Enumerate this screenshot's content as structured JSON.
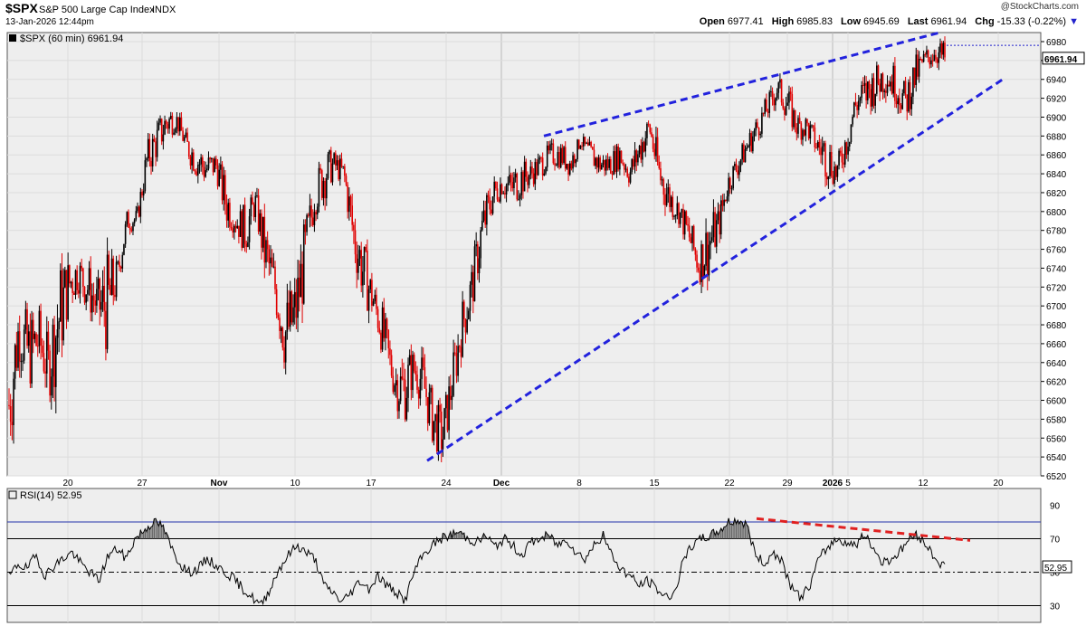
{
  "header": {
    "symbol": "$SPX",
    "name": "S&P 500 Large Cap Index",
    "exchange": "INDX",
    "datetime": "13-Jan-2026 12:44pm",
    "brand": "@StockCharts.com",
    "open_label": "Open",
    "open": "6977.41",
    "high_label": "High",
    "high": "6985.83",
    "low_label": "Low",
    "low": "6945.69",
    "last_label": "Last",
    "last": "6961.94",
    "chg_label": "Chg",
    "chg": "-15.33 (-0.22%)",
    "chg_arrow": "▼"
  },
  "main_legend": "$SPX (60 min) 6961.94",
  "rsi_legend": "RSI(14) 52.95",
  "colors": {
    "up": "#000000",
    "down": "#e00000",
    "trend": "#2222dd",
    "rsi_trend": "#e02020",
    "bg": "#eeeeee"
  },
  "chart_data": {
    "type": "candlestick",
    "interval": "60 min",
    "price_axis": {
      "min": 6520,
      "max": 6980,
      "step": 20,
      "ticks": [
        6520,
        6540,
        6560,
        6580,
        6600,
        6620,
        6640,
        6660,
        6680,
        6700,
        6720,
        6740,
        6760,
        6780,
        6800,
        6820,
        6840,
        6860,
        6880,
        6900,
        6920,
        6940,
        6960,
        6980
      ]
    },
    "last_price_label": "6961.94",
    "x_tick_labels": [
      "20",
      "27",
      "Nov",
      "10",
      "17",
      "24",
      "Dec",
      "8",
      "15",
      "22",
      "29",
      "2026",
      "5",
      "12",
      "20"
    ],
    "path": [
      [
        6550,
        6640
      ],
      [
        6650,
        6700
      ],
      [
        6620,
        6680
      ],
      [
        6640,
        6690
      ],
      [
        6610,
        6660
      ],
      [
        6640,
        6730
      ],
      [
        6700,
        6745
      ],
      [
        6720,
        6750
      ],
      [
        6700,
        6740
      ],
      [
        6680,
        6720
      ],
      [
        6660,
        6740
      ],
      [
        6720,
        6745
      ],
      [
        6780,
        6800
      ],
      [
        6785,
        6800
      ],
      [
        6840,
        6870
      ],
      [
        6860,
        6890
      ],
      [
        6880,
        6910
      ],
      [
        6890,
        6905
      ],
      [
        6860,
        6880
      ],
      [
        6840,
        6870
      ],
      [
        6830,
        6860
      ],
      [
        6840,
        6860
      ],
      [
        6790,
        6830
      ],
      [
        6780,
        6800
      ],
      [
        6760,
        6800
      ],
      [
        6800,
        6820
      ],
      [
        6730,
        6780
      ],
      [
        6700,
        6740
      ],
      [
        6640,
        6700
      ],
      [
        6660,
        6720
      ],
      [
        6720,
        6780
      ],
      [
        6800,
        6830
      ],
      [
        6820,
        6860
      ],
      [
        6840,
        6860
      ],
      [
        6830,
        6850
      ],
      [
        6750,
        6800
      ],
      [
        6710,
        6760
      ],
      [
        6690,
        6720
      ],
      [
        6650,
        6690
      ],
      [
        6610,
        6640
      ],
      [
        6580,
        6640
      ],
      [
        6620,
        6650
      ],
      [
        6600,
        6640
      ],
      [
        6560,
        6600
      ],
      [
        6540,
        6580
      ],
      [
        6600,
        6640
      ],
      [
        6660,
        6700
      ],
      [
        6700,
        6740
      ],
      [
        6760,
        6800
      ],
      [
        6800,
        6830
      ],
      [
        6820,
        6840
      ],
      [
        6810,
        6840
      ],
      [
        6820,
        6850
      ],
      [
        6830,
        6850
      ],
      [
        6840,
        6860
      ],
      [
        6850,
        6870
      ],
      [
        6850,
        6870
      ],
      [
        6840,
        6860
      ],
      [
        6870,
        6880
      ],
      [
        6850,
        6870
      ],
      [
        6840,
        6860
      ],
      [
        6840,
        6860
      ],
      [
        6850,
        6870
      ],
      [
        6830,
        6850
      ],
      [
        6850,
        6880
      ],
      [
        6880,
        6900
      ],
      [
        6820,
        6860
      ],
      [
        6800,
        6830
      ],
      [
        6790,
        6810
      ],
      [
        6760,
        6790
      ],
      [
        6730,
        6760
      ],
      [
        6740,
        6790
      ],
      [
        6770,
        6800
      ],
      [
        6820,
        6840
      ],
      [
        6840,
        6860
      ],
      [
        6860,
        6880
      ],
      [
        6880,
        6900
      ],
      [
        6900,
        6920
      ],
      [
        6920,
        6940
      ],
      [
        6900,
        6930
      ],
      [
        6880,
        6900
      ],
      [
        6880,
        6900
      ],
      [
        6860,
        6880
      ],
      [
        6840,
        6880
      ],
      [
        6830,
        6850
      ],
      [
        6860,
        6890
      ],
      [
        6900,
        6930
      ],
      [
        6910,
        6940
      ],
      [
        6920,
        6950
      ],
      [
        6930,
        6960
      ],
      [
        6920,
        6950
      ],
      [
        6900,
        6930
      ],
      [
        6930,
        6960
      ],
      [
        6950,
        6970
      ],
      [
        6960,
        6980
      ],
      [
        6950,
        6975
      ]
    ],
    "trendlines": [
      {
        "name": "upper",
        "from": [
          "Dec 4",
          6880
        ],
        "to": [
          "Jan 13",
          6990
        ]
      },
      {
        "name": "lower",
        "from": [
          "Nov 21",
          6536
        ],
        "to": [
          "Jan 16",
          6940
        ]
      }
    ],
    "rsi": {
      "period": 14,
      "value": "52.95",
      "axis": {
        "min": 20,
        "max": 100,
        "ticks": [
          30,
          50,
          70,
          90
        ]
      },
      "levels": [
        30,
        50,
        70,
        80
      ],
      "value_label": "52.95",
      "path": [
        47,
        55,
        52,
        60,
        48,
        54,
        58,
        62,
        55,
        50,
        45,
        60,
        64,
        58,
        70,
        75,
        80,
        78,
        65,
        55,
        50,
        52,
        58,
        54,
        50,
        46,
        40,
        35,
        30,
        40,
        52,
        60,
        66,
        62,
        58,
        42,
        38,
        32,
        38,
        45,
        40,
        48,
        42,
        38,
        33,
        50,
        60,
        66,
        70,
        72,
        74,
        70,
        68,
        72,
        65,
        70,
        66,
        60,
        68,
        70,
        72,
        66,
        70,
        62,
        58,
        66,
        72,
        60,
        52,
        48,
        42,
        45,
        40,
        35,
        38,
        58,
        66,
        70,
        72,
        75,
        80,
        81,
        78,
        60,
        55,
        62,
        55,
        40,
        35,
        42,
        58,
        65,
        70,
        68,
        66,
        72,
        65,
        56,
        58,
        62,
        70,
        72,
        66,
        58,
        53
      ],
      "trendline": {
        "from": [
          "Dec 26",
          82
        ],
        "to": [
          "Jan 15",
          68
        ]
      }
    }
  }
}
